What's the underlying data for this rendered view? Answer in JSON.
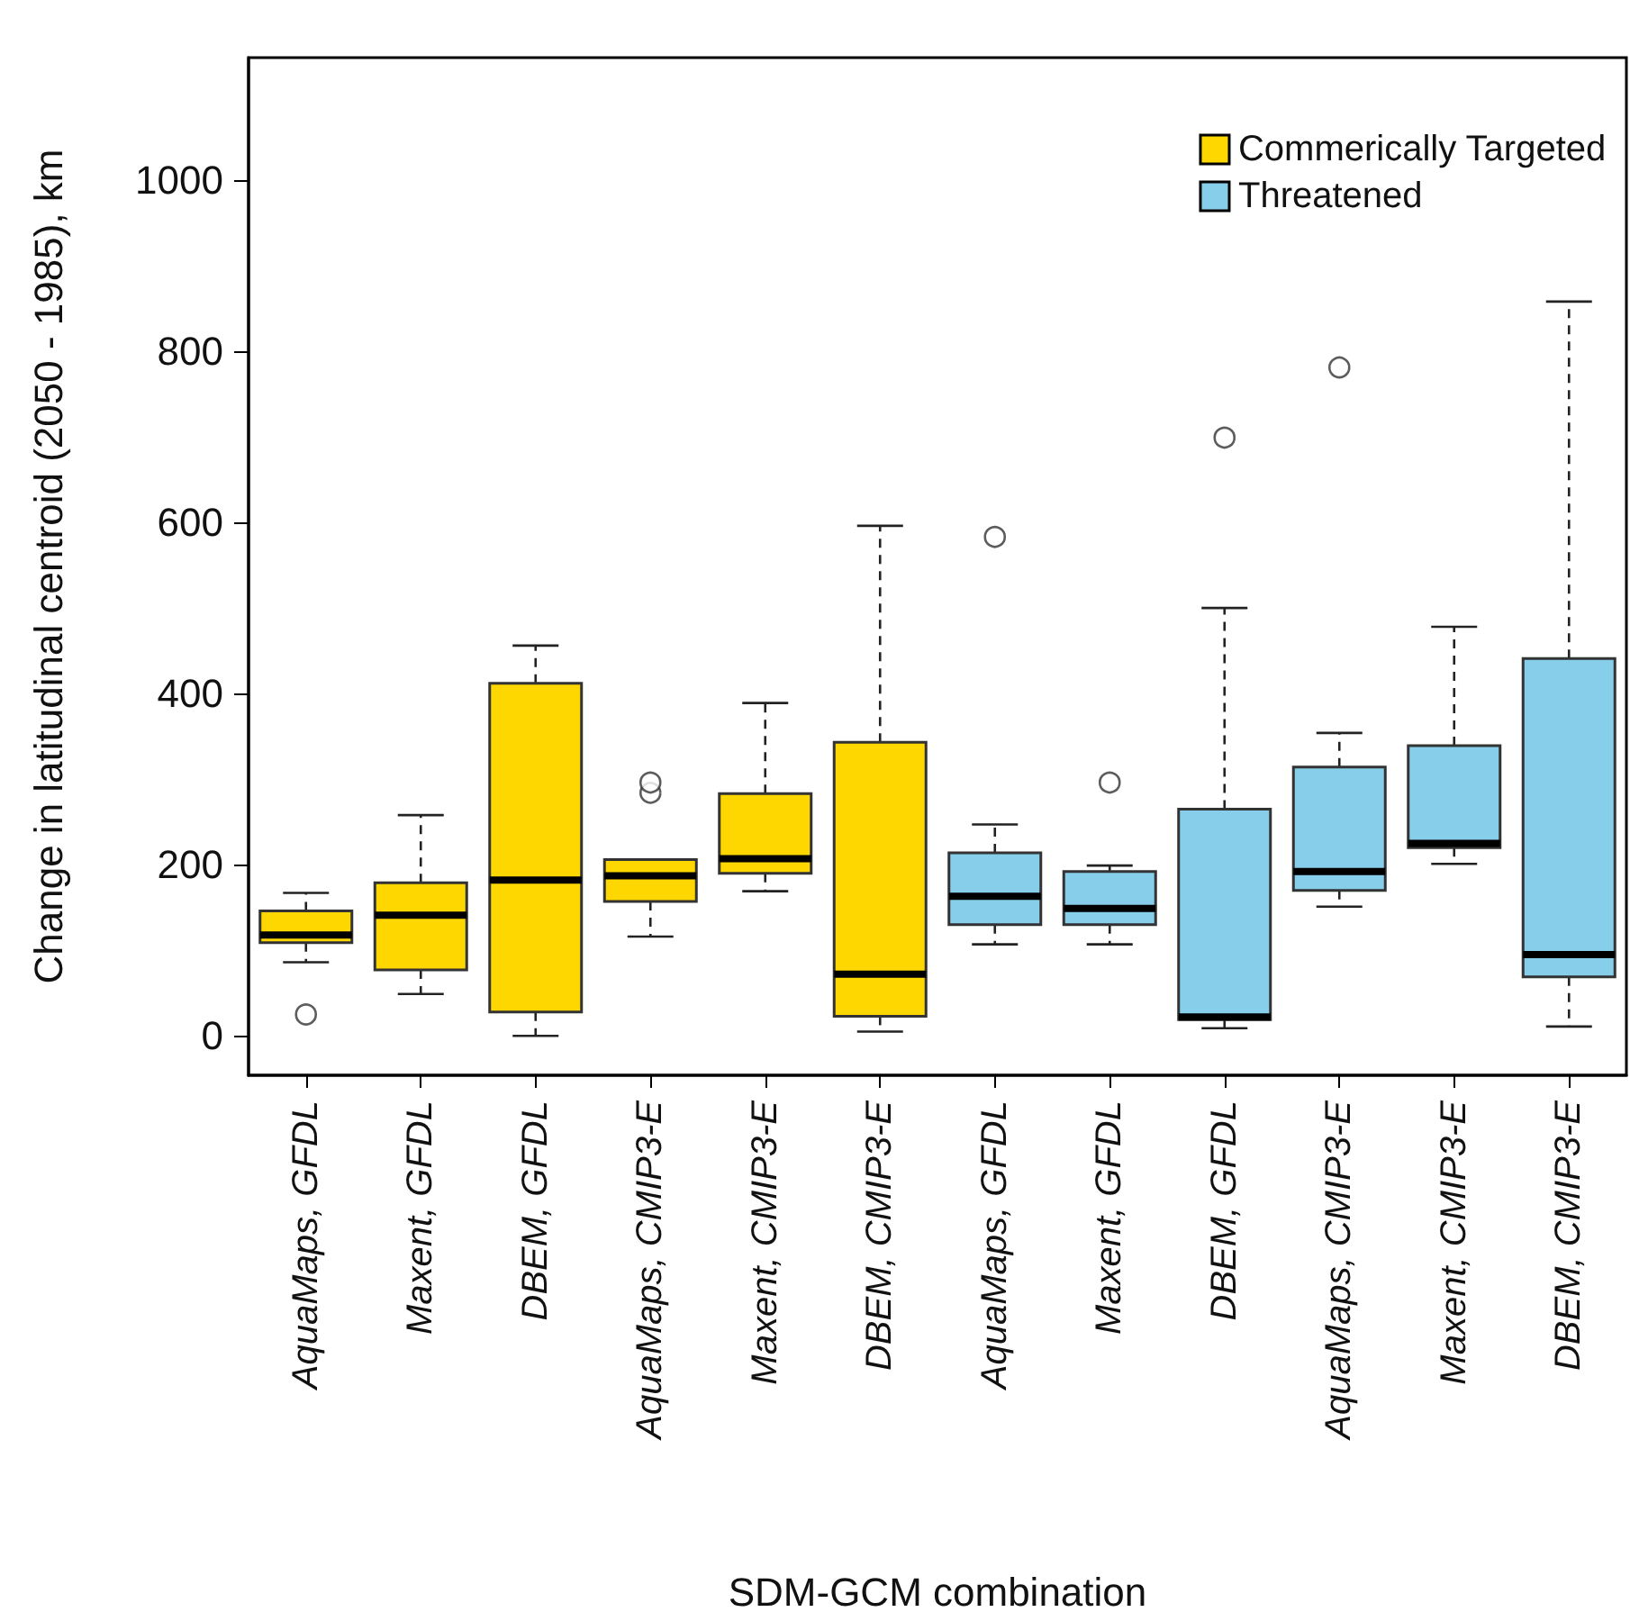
{
  "chart_data": {
    "type": "box",
    "xlabel": "SDM-GCM combination",
    "ylabel": "Change in latitudinal centroid (2050 - 1985), km",
    "categories": [
      "AquaMaps, GFDL",
      "Maxent, GFDL",
      "DBEM, GFDL",
      "AquaMaps, CMIP3-E",
      "Maxent, CMIP3-E",
      "DBEM, CMIP3-E",
      "AquaMaps, GFDL",
      "Maxent, GFDL",
      "DBEM, GFDL",
      "AquaMaps, CMIP3-E",
      "Maxent, CMIP3-E",
      "DBEM, CMIP3-E"
    ],
    "ylim": [
      -46,
      1143
    ],
    "yticks": [
      0,
      200,
      400,
      600,
      800,
      1000
    ],
    "legend": "top right",
    "grid": false,
    "series": [
      {
        "name": "Commerically Targeted",
        "color": "#ffd700",
        "boxes": [
          {
            "low": 86,
            "q1": 109,
            "median": 118,
            "q3": 146,
            "high": 167,
            "outliers": [
              25
            ]
          },
          {
            "low": 49,
            "q1": 77,
            "median": 141,
            "q3": 179,
            "high": 258
          },
          {
            "low": 0,
            "q1": 28,
            "median": 182,
            "q3": 412,
            "high": 456
          },
          {
            "low": 116,
            "q1": 157,
            "median": 187,
            "q3": 206,
            "high": 206,
            "outliers": [
              284,
              296
            ]
          },
          {
            "low": 169,
            "q1": 190,
            "median": 207,
            "q3": 283,
            "high": 389
          },
          {
            "low": 5,
            "q1": 23,
            "median": 72,
            "q3": 343,
            "high": 596
          },
          null,
          null,
          null,
          null,
          null,
          null
        ]
      },
      {
        "name": "Threatened",
        "color": "#87ceeb",
        "boxes": [
          null,
          null,
          null,
          null,
          null,
          null,
          {
            "low": 107,
            "q1": 130,
            "median": 163,
            "q3": 214,
            "high": 247,
            "outliers": [
              583
            ]
          },
          {
            "low": 107,
            "q1": 130,
            "median": 149,
            "q3": 192,
            "high": 199,
            "outliers": [
              296
            ]
          },
          {
            "low": 9,
            "q1": 19,
            "median": 22,
            "q3": 265,
            "high": 500,
            "outliers": [
              699
            ]
          },
          {
            "low": 151,
            "q1": 170,
            "median": 192,
            "q3": 314,
            "high": 354,
            "outliers": [
              781
            ]
          },
          {
            "low": 201,
            "q1": 220,
            "median": 225,
            "q3": 339,
            "high": 478
          },
          {
            "low": 11,
            "q1": 69,
            "median": 95,
            "q3": 441,
            "high": 858
          }
        ]
      }
    ]
  }
}
